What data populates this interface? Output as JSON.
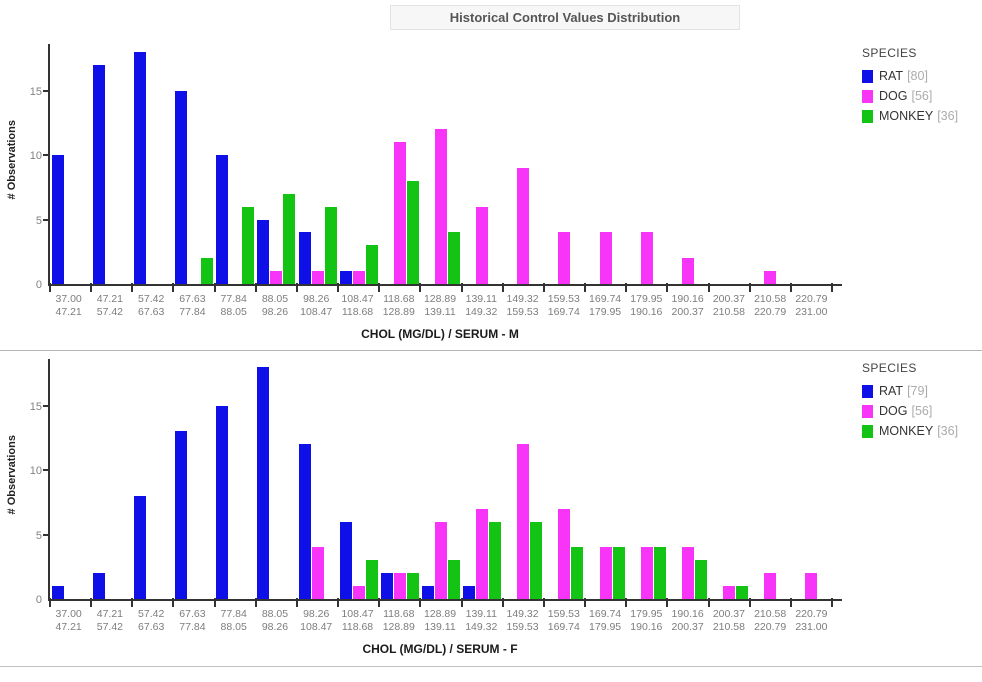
{
  "page": {
    "title": "Historical Control Values Distribution"
  },
  "colors": {
    "rat": "#0f0fe8",
    "dog": "#f734f7",
    "monkey": "#14c414",
    "axis": "#333333",
    "tick_label": "#7d7d7d",
    "divider": "#b5b5b5"
  },
  "chart_data": [
    {
      "type": "bar",
      "title": "",
      "xlabel": "CHOL (MG/DL) / SERUM - M",
      "ylabel": "# Observations",
      "legend_title": "SPECIES",
      "legend_position": "right",
      "grid": false,
      "yticks": [
        0,
        5,
        10,
        15
      ],
      "ylim": [
        0,
        18.76
      ],
      "bins": [
        [
          "37.00",
          "47.21"
        ],
        [
          "47.21",
          "57.42"
        ],
        [
          "57.42",
          "67.63"
        ],
        [
          "67.63",
          "77.84"
        ],
        [
          "77.84",
          "88.05"
        ],
        [
          "88.05",
          "98.26"
        ],
        [
          "98.26",
          "108.47"
        ],
        [
          "108.47",
          "118.68"
        ],
        [
          "118.68",
          "128.89"
        ],
        [
          "128.89",
          "139.11"
        ],
        [
          "139.11",
          "149.32"
        ],
        [
          "149.32",
          "159.53"
        ],
        [
          "159.53",
          "169.74"
        ],
        [
          "169.74",
          "179.95"
        ],
        [
          "179.95",
          "190.16"
        ],
        [
          "190.16",
          "200.37"
        ],
        [
          "200.37",
          "210.58"
        ],
        [
          "210.58",
          "220.79"
        ],
        [
          "220.79",
          "231.00"
        ]
      ],
      "series": [
        {
          "name": "RAT",
          "count": 80,
          "color": "#0f0fe8",
          "values": [
            10,
            17,
            18,
            15,
            10,
            5,
            4,
            1,
            0,
            0,
            0,
            0,
            0,
            0,
            0,
            0,
            0,
            0,
            0
          ]
        },
        {
          "name": "DOG",
          "count": 56,
          "color": "#f734f7",
          "values": [
            0,
            0,
            0,
            0,
            0,
            1,
            1,
            1,
            11,
            12,
            6,
            9,
            4,
            4,
            4,
            2,
            0,
            1,
            0
          ]
        },
        {
          "name": "MONKEY",
          "count": 36,
          "color": "#14c414",
          "values": [
            0,
            0,
            0,
            2,
            6,
            7,
            6,
            3,
            8,
            4,
            0,
            0,
            0,
            0,
            0,
            0,
            0,
            0,
            0
          ]
        }
      ]
    },
    {
      "type": "bar",
      "title": "",
      "xlabel": "CHOL (MG/DL) / SERUM - F",
      "ylabel": "# Observations",
      "legend_title": "SPECIES",
      "legend_position": "right",
      "grid": false,
      "yticks": [
        0,
        5,
        10,
        15
      ],
      "ylim": [
        0,
        18.76
      ],
      "bins": [
        [
          "37.00",
          "47.21"
        ],
        [
          "47.21",
          "57.42"
        ],
        [
          "57.42",
          "67.63"
        ],
        [
          "67.63",
          "77.84"
        ],
        [
          "77.84",
          "88.05"
        ],
        [
          "88.05",
          "98.26"
        ],
        [
          "98.26",
          "108.47"
        ],
        [
          "108.47",
          "118.68"
        ],
        [
          "118.68",
          "128.89"
        ],
        [
          "128.89",
          "139.11"
        ],
        [
          "139.11",
          "149.32"
        ],
        [
          "149.32",
          "159.53"
        ],
        [
          "159.53",
          "169.74"
        ],
        [
          "169.74",
          "179.95"
        ],
        [
          "179.95",
          "190.16"
        ],
        [
          "190.16",
          "200.37"
        ],
        [
          "200.37",
          "210.58"
        ],
        [
          "210.58",
          "220.79"
        ],
        [
          "220.79",
          "231.00"
        ]
      ],
      "series": [
        {
          "name": "RAT",
          "count": 79,
          "color": "#0f0fe8",
          "values": [
            1,
            2,
            8,
            13,
            15,
            18,
            12,
            6,
            2,
            1,
            1,
            0,
            0,
            0,
            0,
            0,
            0,
            0,
            0
          ]
        },
        {
          "name": "DOG",
          "count": 56,
          "color": "#f734f7",
          "values": [
            0,
            0,
            0,
            0,
            0,
            0,
            4,
            1,
            2,
            6,
            7,
            12,
            7,
            4,
            4,
            4,
            1,
            2,
            2
          ]
        },
        {
          "name": "MONKEY",
          "count": 36,
          "color": "#14c414",
          "values": [
            0,
            0,
            0,
            0,
            0,
            0,
            0,
            3,
            2,
            3,
            6,
            6,
            4,
            4,
            4,
            3,
            1,
            0,
            0
          ]
        }
      ]
    }
  ]
}
